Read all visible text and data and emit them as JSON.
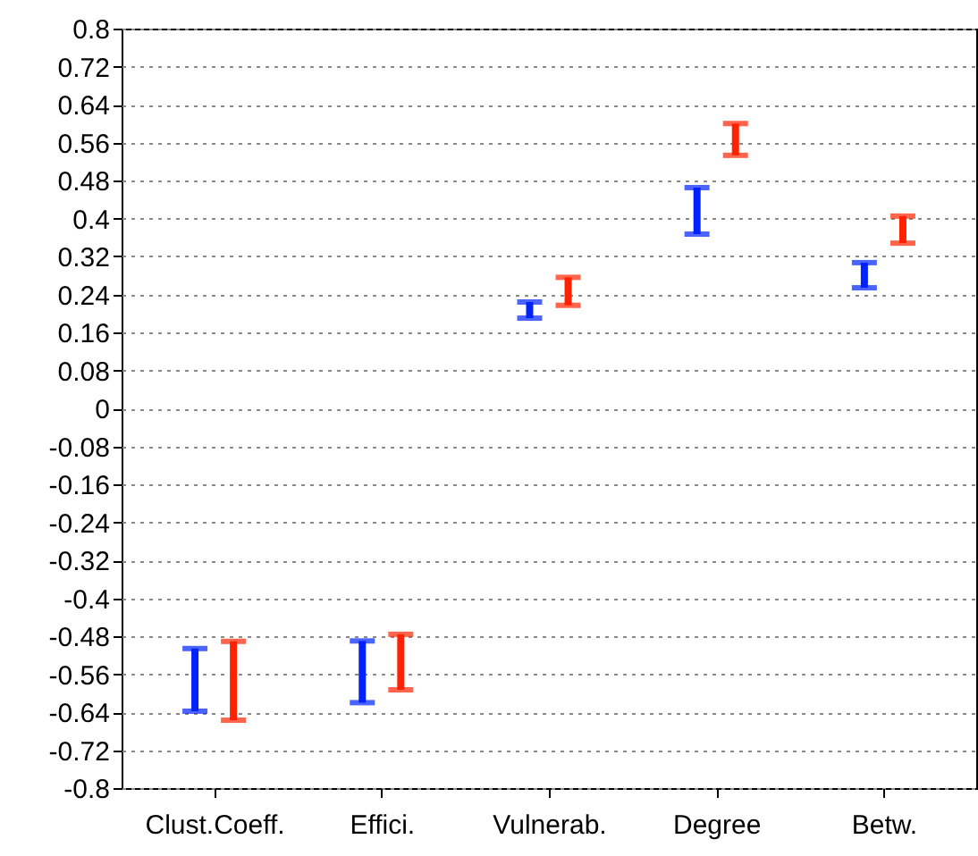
{
  "chart_data": {
    "type": "bar",
    "grid": "y",
    "categories": [
      "Clust.Coeff.",
      "Effici.",
      "Vulnerab.",
      "Degree",
      "Betw."
    ],
    "ylim": [
      -0.8,
      0.8
    ],
    "yticks": [
      -0.8,
      -0.72,
      -0.64,
      -0.56,
      -0.48,
      -0.4,
      -0.32,
      -0.24,
      -0.16,
      -0.08,
      0,
      0.08,
      0.16,
      0.24,
      0.32,
      0.4,
      0.48,
      0.56,
      0.64,
      0.72,
      0.8
    ],
    "series": [
      {
        "color": "#0022ff",
        "base": [
          -0.638,
          -0.62,
          0.19,
          0.367,
          0.254
        ],
        "values": [
          0.132,
          0.13,
          0.034,
          0.098,
          0.053
        ]
      },
      {
        "color": "#ff2200",
        "base": [
          -0.657,
          -0.593,
          0.217,
          0.533,
          0.348
        ],
        "values": [
          0.166,
          0.117,
          0.059,
          0.067,
          0.057
        ]
      }
    ]
  }
}
